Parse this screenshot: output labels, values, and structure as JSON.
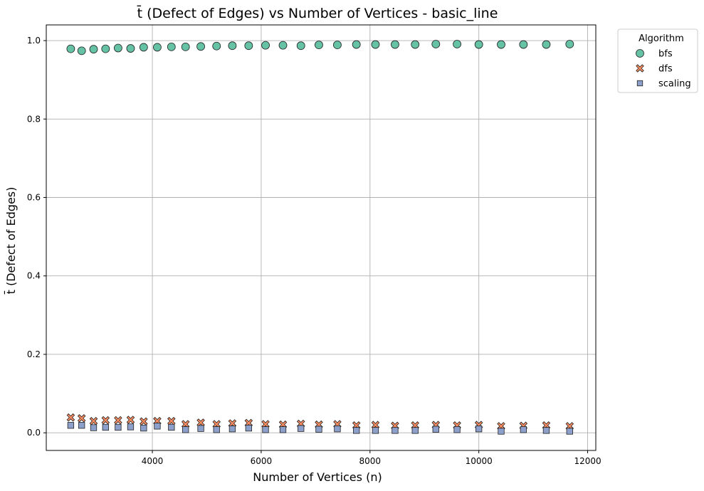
{
  "chart_data": {
    "type": "scatter",
    "title": "t̄ (Defect of Edges) vs Number of Vertices - basic_line",
    "xlabel": "Number of Vertices (n)",
    "ylabel": "t̄ (Defect of Edges)",
    "xlim": [
      2050,
      12150
    ],
    "ylim": [
      -0.045,
      1.04
    ],
    "xticks": [
      4000,
      6000,
      8000,
      10000,
      12000
    ],
    "yticks": [
      0.0,
      0.2,
      0.4,
      0.6,
      0.8,
      1.0
    ],
    "grid": true,
    "legend": {
      "title": "Algorithm",
      "placement": "outside-top-right"
    },
    "x": [
      2500,
      2700,
      2920,
      3140,
      3370,
      3600,
      3840,
      4090,
      4350,
      4610,
      4890,
      5180,
      5470,
      5770,
      6080,
      6400,
      6730,
      7060,
      7400,
      7750,
      8100,
      8460,
      8830,
      9210,
      9600,
      10000,
      10410,
      10820,
      11240,
      11670
    ],
    "series": [
      {
        "name": "bfs",
        "marker": "circle",
        "color": "#66c2a5",
        "values": [
          0.979,
          0.974,
          0.978,
          0.979,
          0.981,
          0.98,
          0.983,
          0.983,
          0.984,
          0.984,
          0.985,
          0.986,
          0.987,
          0.987,
          0.988,
          0.988,
          0.987,
          0.989,
          0.989,
          0.99,
          0.99,
          0.99,
          0.99,
          0.991,
          0.991,
          0.99,
          0.99,
          0.99,
          0.99,
          0.991
        ]
      },
      {
        "name": "dfs",
        "marker": "x",
        "color": "#fc8d62",
        "values": [
          0.039,
          0.037,
          0.03,
          0.032,
          0.032,
          0.033,
          0.029,
          0.03,
          0.03,
          0.022,
          0.026,
          0.022,
          0.024,
          0.025,
          0.022,
          0.021,
          0.023,
          0.021,
          0.022,
          0.019,
          0.02,
          0.018,
          0.019,
          0.02,
          0.019,
          0.02,
          0.017,
          0.018,
          0.019,
          0.017
        ]
      },
      {
        "name": "scaling",
        "marker": "square",
        "color": "#8da0cb",
        "values": [
          0.019,
          0.019,
          0.013,
          0.014,
          0.014,
          0.015,
          0.012,
          0.017,
          0.014,
          0.008,
          0.011,
          0.008,
          0.01,
          0.012,
          0.008,
          0.008,
          0.011,
          0.009,
          0.01,
          0.006,
          0.006,
          0.006,
          0.006,
          0.009,
          0.008,
          0.01,
          0.004,
          0.008,
          0.006,
          0.004
        ]
      }
    ]
  }
}
